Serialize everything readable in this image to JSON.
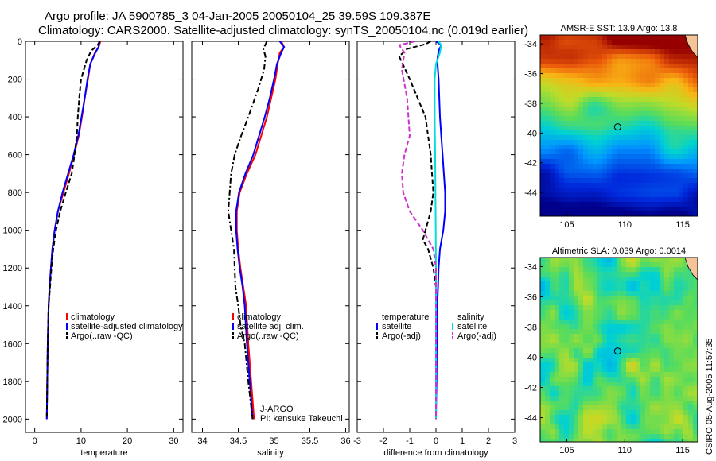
{
  "title_line1": "Argo profile: JA 5900785_3 04-Jan-2005 20050104_25 39.59S 109.387E",
  "title_line2": "Climatology: CARS2000. Satellite-adjusted climatology: synTS_20050104.nc (0.019d earlier)",
  "footer_note": "CSIRO 05-Aug-2005 11:57:35",
  "chart_data": [
    {
      "type": "line",
      "xlabel": "temperature",
      "xlim": [
        -2,
        32
      ],
      "xticks": [
        0,
        10,
        20,
        30
      ],
      "ylim": [
        0,
        2070
      ],
      "yticks": [
        0,
        200,
        400,
        600,
        800,
        1000,
        1200,
        1400,
        1600,
        1800,
        2000
      ],
      "y_reversed": true,
      "legend_position": "lower-right",
      "legend": [
        "climatology",
        "satellite-adjusted climatology",
        "Argo(..raw -QC)"
      ],
      "series": [
        {
          "name": "climatology",
          "color": "#ff0000",
          "dash": "solid",
          "x": [
            14.2,
            13.8,
            13.0,
            12.0,
            11.5,
            10.8,
            10.2,
            9.5,
            8.5,
            7.4,
            6.2,
            5.0,
            4.3,
            3.8,
            3.5,
            3.2,
            3.0,
            2.8,
            2.7,
            2.6
          ],
          "y": [
            0,
            30,
            60,
            120,
            200,
            300,
            400,
            500,
            600,
            700,
            800,
            900,
            1000,
            1100,
            1200,
            1300,
            1400,
            1600,
            1800,
            2000
          ]
        },
        {
          "name": "satellite-adjusted climatology",
          "color": "#0000ff",
          "dash": "solid",
          "x": [
            14.0,
            13.8,
            13.1,
            12.0,
            11.4,
            10.8,
            10.1,
            9.4,
            8.4,
            7.2,
            6.0,
            5.0,
            4.3,
            3.8,
            3.5,
            3.2,
            3.0,
            2.8,
            2.7,
            2.6
          ],
          "y": [
            0,
            30,
            60,
            120,
            200,
            300,
            400,
            500,
            600,
            700,
            800,
            900,
            1000,
            1100,
            1200,
            1300,
            1400,
            1600,
            1800,
            2000
          ]
        },
        {
          "name": "Argo(..raw -QC)",
          "color": "#000000",
          "dash": "dashed",
          "x": [
            14.0,
            13.6,
            12.2,
            11.2,
            10.0,
            9.6,
            9.3,
            9.1,
            8.6,
            8.0,
            6.7,
            5.5,
            4.6,
            4.0,
            3.6,
            3.3,
            3.0,
            2.8,
            2.7,
            2.6
          ],
          "y": [
            0,
            20,
            50,
            100,
            200,
            300,
            400,
            500,
            600,
            700,
            800,
            900,
            1000,
            1100,
            1200,
            1300,
            1400,
            1600,
            1800,
            2000
          ]
        }
      ]
    },
    {
      "type": "line",
      "xlabel": "salinity",
      "xlim": [
        33.85,
        36.05
      ],
      "xticks": [
        34,
        34.5,
        35,
        35.5,
        36
      ],
      "xtick_labels": [
        "34",
        "34.5",
        "35",
        "35.5",
        "36"
      ],
      "ylim": [
        0,
        2070
      ],
      "y_reversed": true,
      "legend_position": "lower-right",
      "legend": [
        "climatology",
        "satellite adj. clim.",
        "Argo(..raw -QC)"
      ],
      "annotation": [
        "J-ARGO",
        "PI: kensuke Takeuchi"
      ],
      "series": [
        {
          "name": "climatology",
          "color": "#ff0000",
          "dash": "solid",
          "x": [
            35.1,
            35.14,
            35.08,
            35.05,
            35.02,
            34.96,
            34.9,
            34.82,
            34.74,
            34.62,
            34.52,
            34.48,
            34.48,
            34.5,
            34.53,
            34.57,
            34.61,
            34.64,
            34.68,
            34.72
          ],
          "y": [
            0,
            30,
            60,
            120,
            200,
            300,
            400,
            500,
            600,
            700,
            800,
            900,
            1000,
            1100,
            1200,
            1300,
            1400,
            1600,
            1800,
            2000
          ]
        },
        {
          "name": "satellite adj. clim.",
          "color": "#0000ff",
          "dash": "solid",
          "x": [
            35.08,
            35.14,
            35.1,
            35.04,
            35.0,
            34.94,
            34.87,
            34.79,
            34.71,
            34.6,
            34.51,
            34.47,
            34.47,
            34.49,
            34.52,
            34.56,
            34.59,
            34.62,
            34.66,
            34.7
          ],
          "y": [
            0,
            30,
            60,
            120,
            200,
            300,
            400,
            500,
            600,
            700,
            800,
            900,
            1000,
            1100,
            1200,
            1300,
            1400,
            1600,
            1800,
            2000
          ]
        },
        {
          "name": "Argo(..raw -QC)",
          "color": "#000000",
          "dash": "dashdot",
          "x": [
            34.9,
            34.85,
            34.88,
            34.86,
            34.78,
            34.64,
            34.54,
            34.45,
            34.4,
            34.38,
            34.36,
            34.4,
            34.44,
            34.45,
            34.46,
            34.5,
            34.53,
            34.59,
            34.64,
            34.7
          ],
          "y": [
            0,
            40,
            80,
            150,
            250,
            400,
            500,
            600,
            700,
            800,
            900,
            1000,
            1100,
            1200,
            1300,
            1400,
            1500,
            1600,
            1800,
            2000
          ]
        }
      ]
    },
    {
      "type": "line",
      "xlabel": "difference from climatology",
      "xlim": [
        -3,
        3
      ],
      "xticks": [
        -3,
        -2,
        -1,
        0,
        1,
        2,
        3
      ],
      "ylim": [
        0,
        2070
      ],
      "y_reversed": true,
      "legend_position": "lower",
      "legend_groups": [
        {
          "heading": "temperature",
          "items": [
            "satellite",
            "Argo(-adj)"
          ]
        },
        {
          "heading": "salinity",
          "items": [
            "satellite",
            "Argo(-adj)"
          ]
        }
      ],
      "series": [
        {
          "name": "satellite",
          "color": "#0000ff",
          "dash": "solid",
          "x": [
            0.0,
            0.2,
            0.1,
            0.05,
            0.1,
            0.15,
            0.2,
            0.25,
            0.3,
            0.35,
            0.35,
            0.28,
            0.15,
            0.1,
            0.08,
            0.05,
            0.03,
            0.02,
            0.01,
            0.0
          ],
          "y": [
            0,
            20,
            50,
            100,
            200,
            400,
            500,
            600,
            700,
            800,
            900,
            1000,
            1100,
            1200,
            1300,
            1400,
            1600,
            1800,
            1900,
            2000
          ]
        },
        {
          "name": "Argo(-adj)",
          "color": "#000000",
          "dash": "dashed",
          "x": [
            -0.2,
            -0.4,
            -1.1,
            -1.4,
            -1.0,
            -0.4,
            -0.2,
            -0.15,
            -0.1,
            -0.2,
            -0.4,
            -0.5,
            -0.3,
            -0.1,
            0.0,
            0.0,
            0.0,
            0.0,
            0.0
          ],
          "y": [
            0,
            15,
            40,
            80,
            200,
            400,
            600,
            700,
            800,
            900,
            1000,
            1050,
            1100,
            1200,
            1300,
            1400,
            1600,
            1800,
            2000
          ]
        },
        {
          "name": "satellite",
          "color": "#00dddd",
          "dash": "solid",
          "x": [
            0.1,
            0.2,
            0.15,
            0.0,
            -0.05,
            -0.05,
            -0.03,
            -0.02,
            -0.01,
            0.0,
            0.0,
            0.0,
            0.0,
            0.0,
            0.0
          ],
          "y": [
            0,
            20,
            60,
            120,
            200,
            400,
            600,
            800,
            1000,
            1200,
            1400,
            1600,
            1800,
            1900,
            2000
          ]
        },
        {
          "name": "Argo(-adj)",
          "color": "#cc33cc",
          "dash": "dashed",
          "x": [
            -0.8,
            -1.4,
            -1.2,
            -1.3,
            -1.1,
            -1.0,
            -1.2,
            -1.3,
            -1.25,
            -1.0,
            -0.5,
            -0.1,
            0.0,
            0.0,
            0.0,
            0.0,
            0.0
          ],
          "y": [
            0,
            20,
            60,
            150,
            300,
            500,
            600,
            700,
            800,
            900,
            1000,
            1100,
            1200,
            1400,
            1600,
            1800,
            2000
          ]
        }
      ]
    },
    {
      "type": "heatmap",
      "title": "AMSR-E SST: 13.9 Argo: 13.8",
      "xlim": [
        102.7,
        116.3
      ],
      "xticks": [
        105,
        110,
        115
      ],
      "ylim": [
        -45.6,
        -33.4
      ],
      "yticks": [
        -34,
        -36,
        -38,
        -40,
        -42,
        -44
      ],
      "marker": {
        "lon": 109.387,
        "lat": -39.59
      }
    },
    {
      "type": "heatmap",
      "title": "Altimetric SLA: 0.039 Argo: 0.0014",
      "xlim": [
        102.7,
        116.3
      ],
      "xticks": [
        105,
        110,
        115
      ],
      "ylim": [
        -45.6,
        -33.4
      ],
      "yticks": [
        -34,
        -36,
        -38,
        -40,
        -42,
        -44
      ],
      "marker": {
        "lon": 109.387,
        "lat": -39.59
      }
    }
  ]
}
